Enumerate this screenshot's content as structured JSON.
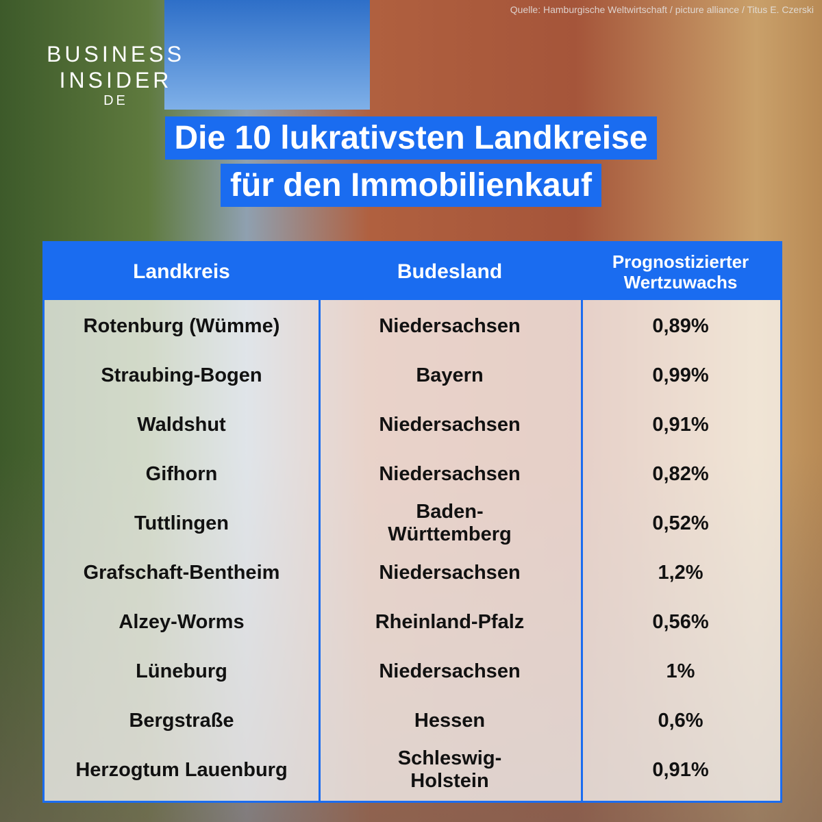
{
  "source": "Quelle: Hamburgische Weltwirtschaft / picture alliance / Titus E. Czerski",
  "logo": {
    "line1": "BUSINESS",
    "line2": "INSIDER",
    "edition": "DE"
  },
  "title": {
    "lines": [
      "Die 10 lukrativsten Landkreise",
      "für den Immobilienkauf"
    ]
  },
  "table": {
    "headers": [
      "Landkreis",
      "Budesland",
      "Prognostizierter\nWertzuwachs"
    ],
    "rows": [
      [
        "Rotenburg (Wümme)",
        "Niedersachsen",
        "0,89%"
      ],
      [
        "Straubing-Bogen",
        "Bayern",
        "0,99%"
      ],
      [
        "Waldshut",
        "Niedersachsen",
        "0,91%"
      ],
      [
        "Gifhorn",
        "Niedersachsen",
        "0,82%"
      ],
      [
        "Tuttlingen",
        "Baden-\nWürttemberg",
        "0,52%"
      ],
      [
        "Grafschaft-Bentheim",
        "Niedersachsen",
        "1,2%"
      ],
      [
        "Alzey-Worms",
        "Rheinland-Pfalz",
        "0,56%"
      ],
      [
        "Lüneburg",
        "Niedersachsen",
        "1%"
      ],
      [
        "Bergstraße",
        "Hessen",
        "0,6%"
      ],
      [
        "Herzogtum Lauenburg",
        "Schleswig-\nHolstein",
        "0,91%"
      ]
    ]
  }
}
